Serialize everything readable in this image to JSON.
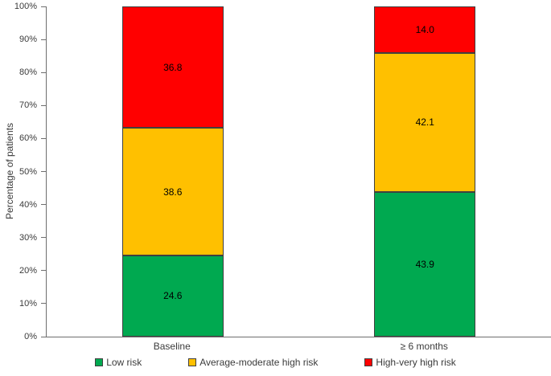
{
  "chart_data": {
    "type": "bar",
    "subtype": "stacked-100-percent",
    "title": "",
    "xlabel": "",
    "ylabel": "Percentage of patients",
    "ylim": [
      0,
      100
    ],
    "yticks": [
      "0%",
      "10%",
      "20%",
      "30%",
      "40%",
      "50%",
      "60%",
      "70%",
      "80%",
      "90%",
      "100%"
    ],
    "ytick_values": [
      0,
      10,
      20,
      30,
      40,
      50,
      60,
      70,
      80,
      90,
      100
    ],
    "categories": [
      "Baseline",
      "≥ 6 months"
    ],
    "series": [
      {
        "name": "Low risk",
        "color": "#00A950",
        "values": [
          24.6,
          43.9
        ],
        "labels": [
          "24.6",
          "43.9"
        ]
      },
      {
        "name": "Average-moderate high risk",
        "color": "#FFC000",
        "values": [
          38.6,
          42.1
        ],
        "labels": [
          "38.6",
          "42.1"
        ]
      },
      {
        "name": "High-very high risk",
        "color": "#FF0000",
        "values": [
          36.8,
          14.0
        ],
        "labels": [
          "36.8",
          "14.0"
        ]
      }
    ],
    "legend_position": "bottom",
    "grid": false,
    "colors": {
      "segment_border": "#404040",
      "axis_line": "#6e6e6e",
      "tick_text": "#3b3b3b",
      "data_label_text": "#000000",
      "background": "#ffffff"
    }
  }
}
